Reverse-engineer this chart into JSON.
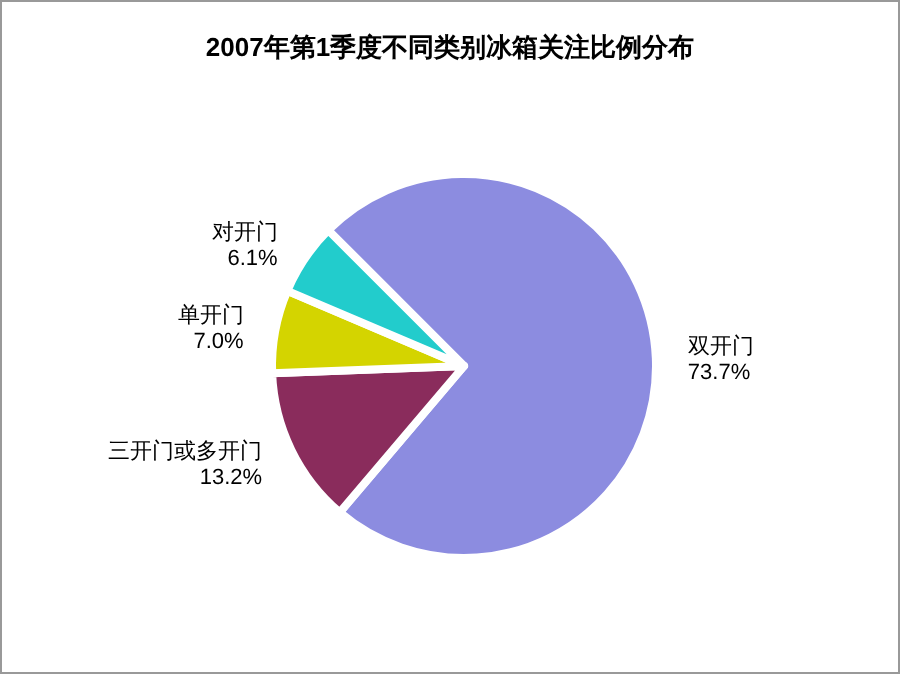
{
  "chart_data": {
    "type": "pie",
    "title": "2007年第1季度不同类别冰箱关注比例分布",
    "categories": [
      "双开门",
      "三开门或多开门",
      "单开门",
      "对开门"
    ],
    "values": [
      73.7,
      13.2,
      7.0,
      6.1
    ],
    "colors": [
      "#8c8ce0",
      "#8a2c5c",
      "#d4d400",
      "#22cccc"
    ],
    "value_labels": [
      "73.7%",
      "13.2%",
      "7.0%",
      "6.1%"
    ]
  }
}
